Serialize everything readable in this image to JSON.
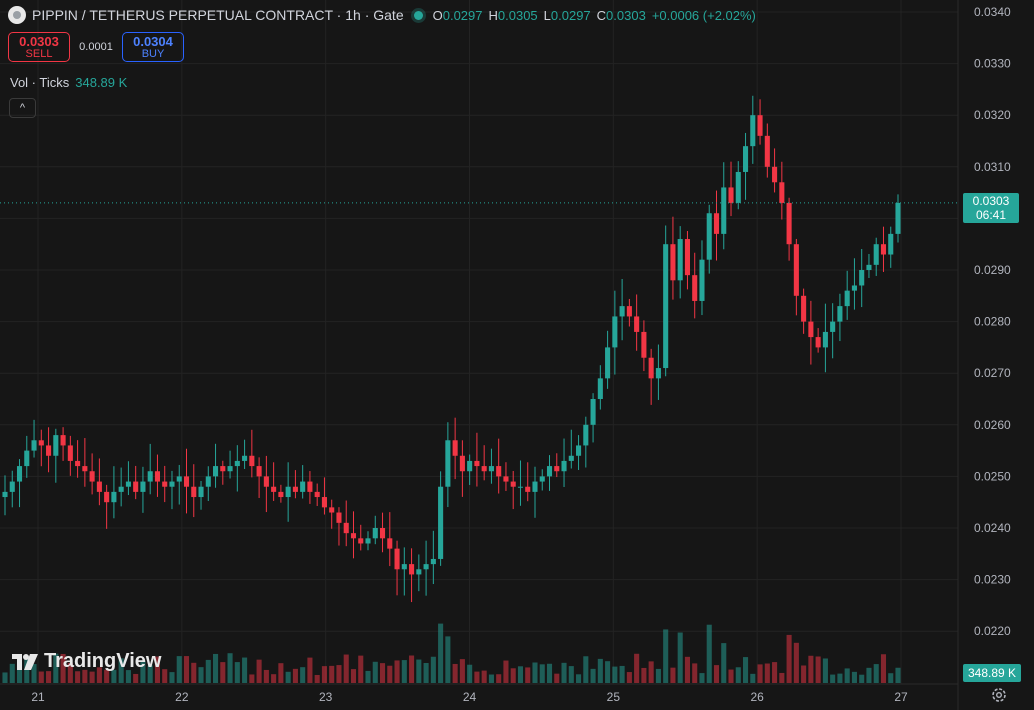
{
  "header": {
    "title": "PIPPIN / TETHERUS PERPETUAL CONTRACT · 1h · Gate",
    "ohlc": [
      {
        "k": "O",
        "v": "0.0297"
      },
      {
        "k": "H",
        "v": "0.0305"
      },
      {
        "k": "L",
        "v": "0.0297"
      },
      {
        "k": "C",
        "v": "0.0303"
      }
    ],
    "change": "+0.0006 (+2.02%)"
  },
  "trade": {
    "sell_price": "0.0303",
    "sell_label": "SELL",
    "spread": "0.0001",
    "buy_price": "0.0304",
    "buy_label": "BUY"
  },
  "volume": {
    "label": "Vol · Ticks",
    "value": "348.89 K"
  },
  "collapse_glyph": "^",
  "brand": "TradingView",
  "last_price": {
    "price": "0.0303",
    "countdown": "06:41"
  },
  "volume_label": "348.89 K",
  "colors": {
    "up": "#26a69a",
    "down": "#f23645",
    "background": "#161616",
    "grid": "#232323"
  },
  "chart_data": {
    "type": "candlestick",
    "y_ticks": [
      "0.0340",
      "0.0330",
      "0.0320",
      "0.0310",
      "0.0300",
      "0.0290",
      "0.0280",
      "0.0270",
      "0.0260",
      "0.0250",
      "0.0240",
      "0.0230",
      "0.0220"
    ],
    "x_ticks": [
      "21",
      "22",
      "23",
      "24",
      "25",
      "26",
      "27"
    ],
    "ylim": [
      0.0218,
      0.0341
    ],
    "x_range": [
      "21 00:00",
      "27 00:00"
    ],
    "interval": "1h",
    "candles_close": [
      0.0247,
      0.0249,
      0.0252,
      0.0255,
      0.0257,
      0.0256,
      0.0254,
      0.0258,
      0.0256,
      0.0253,
      0.0252,
      0.0251,
      0.0249,
      0.0247,
      0.0245,
      0.0247,
      0.0248,
      0.0249,
      0.0247,
      0.0249,
      0.0251,
      0.0249,
      0.0248,
      0.0249,
      0.025,
      0.0248,
      0.0246,
      0.0248,
      0.025,
      0.0252,
      0.0251,
      0.0252,
      0.0253,
      0.0254,
      0.0252,
      0.025,
      0.0248,
      0.0247,
      0.0246,
      0.0248,
      0.0247,
      0.0249,
      0.0247,
      0.0246,
      0.0244,
      0.0243,
      0.0241,
      0.0239,
      0.0238,
      0.0237,
      0.0238,
      0.024,
      0.0238,
      0.0236,
      0.0232,
      0.0233,
      0.0231,
      0.0232,
      0.0233,
      0.0234,
      0.0248,
      0.0257,
      0.0254,
      0.0251,
      0.0253,
      0.0252,
      0.0251,
      0.0252,
      0.025,
      0.0249,
      0.0248,
      0.0248,
      0.0247,
      0.0249,
      0.025,
      0.0252,
      0.0251,
      0.0253,
      0.0254,
      0.0256,
      0.026,
      0.0265,
      0.0269,
      0.0275,
      0.0281,
      0.0283,
      0.0281,
      0.0278,
      0.0273,
      0.0269,
      0.0271,
      0.0295,
      0.0288,
      0.0296,
      0.0289,
      0.0284,
      0.0292,
      0.0301,
      0.0297,
      0.0306,
      0.0303,
      0.0309,
      0.0314,
      0.032,
      0.0316,
      0.031,
      0.0307,
      0.0303,
      0.0295,
      0.0285,
      0.028,
      0.0277,
      0.0275,
      0.0278,
      0.028,
      0.0283,
      0.0286,
      0.0287,
      0.029,
      0.0291,
      0.0295,
      0.0293,
      0.0297,
      0.0303
    ]
  }
}
